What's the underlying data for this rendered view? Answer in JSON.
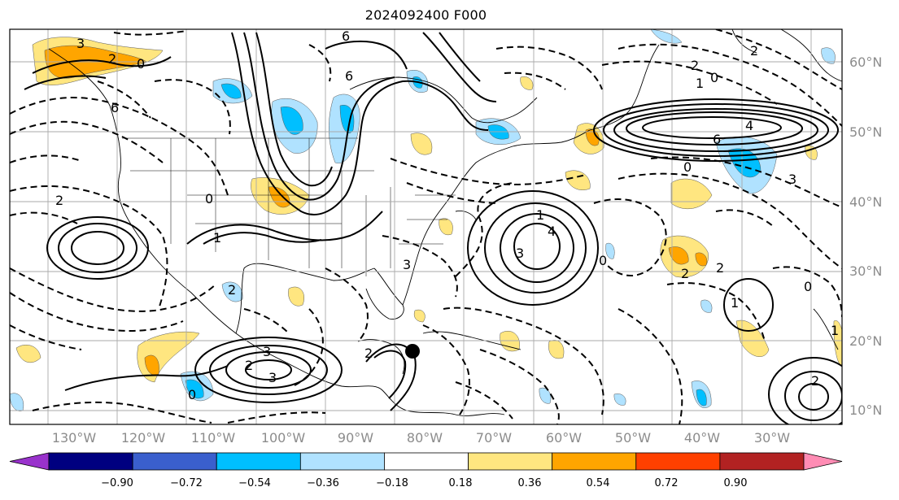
{
  "title": "2024092400 F000",
  "latitude_labels": [
    "60°N",
    "50°N",
    "40°N",
    "30°N",
    "20°N",
    "10°N"
  ],
  "longitude_labels": [
    "130°W",
    "120°W",
    "110°W",
    "100°W",
    "90°W",
    "80°W",
    "70°W",
    "60°W",
    "50°W",
    "40°W",
    "30°W"
  ],
  "colorbar": {
    "tick_labels": [
      "−0.90",
      "−0.72",
      "−0.54",
      "−0.36",
      "−0.18",
      "0.18",
      "0.36",
      "0.54",
      "0.72",
      "0.90"
    ],
    "colors": [
      "#9932cc",
      "#000080",
      "#3a5fcd",
      "#00bfff",
      "#b0e2ff",
      "#ffffff",
      "#ffe680",
      "#ffa500",
      "#ff4000",
      "#b22222",
      "#ff8cb4"
    ]
  },
  "contour_labels": [
    "3",
    "2",
    "0",
    "6",
    "6",
    "2",
    "2",
    "4",
    "6",
    "1",
    "0",
    "0",
    "6",
    "2",
    "3",
    "3",
    "1",
    "1",
    "2",
    "0",
    "3",
    "0",
    "2",
    "2",
    "4",
    "3",
    "2",
    "0",
    "1",
    "2",
    "3",
    "0",
    "2",
    "1"
  ],
  "marker": "storm-center"
}
